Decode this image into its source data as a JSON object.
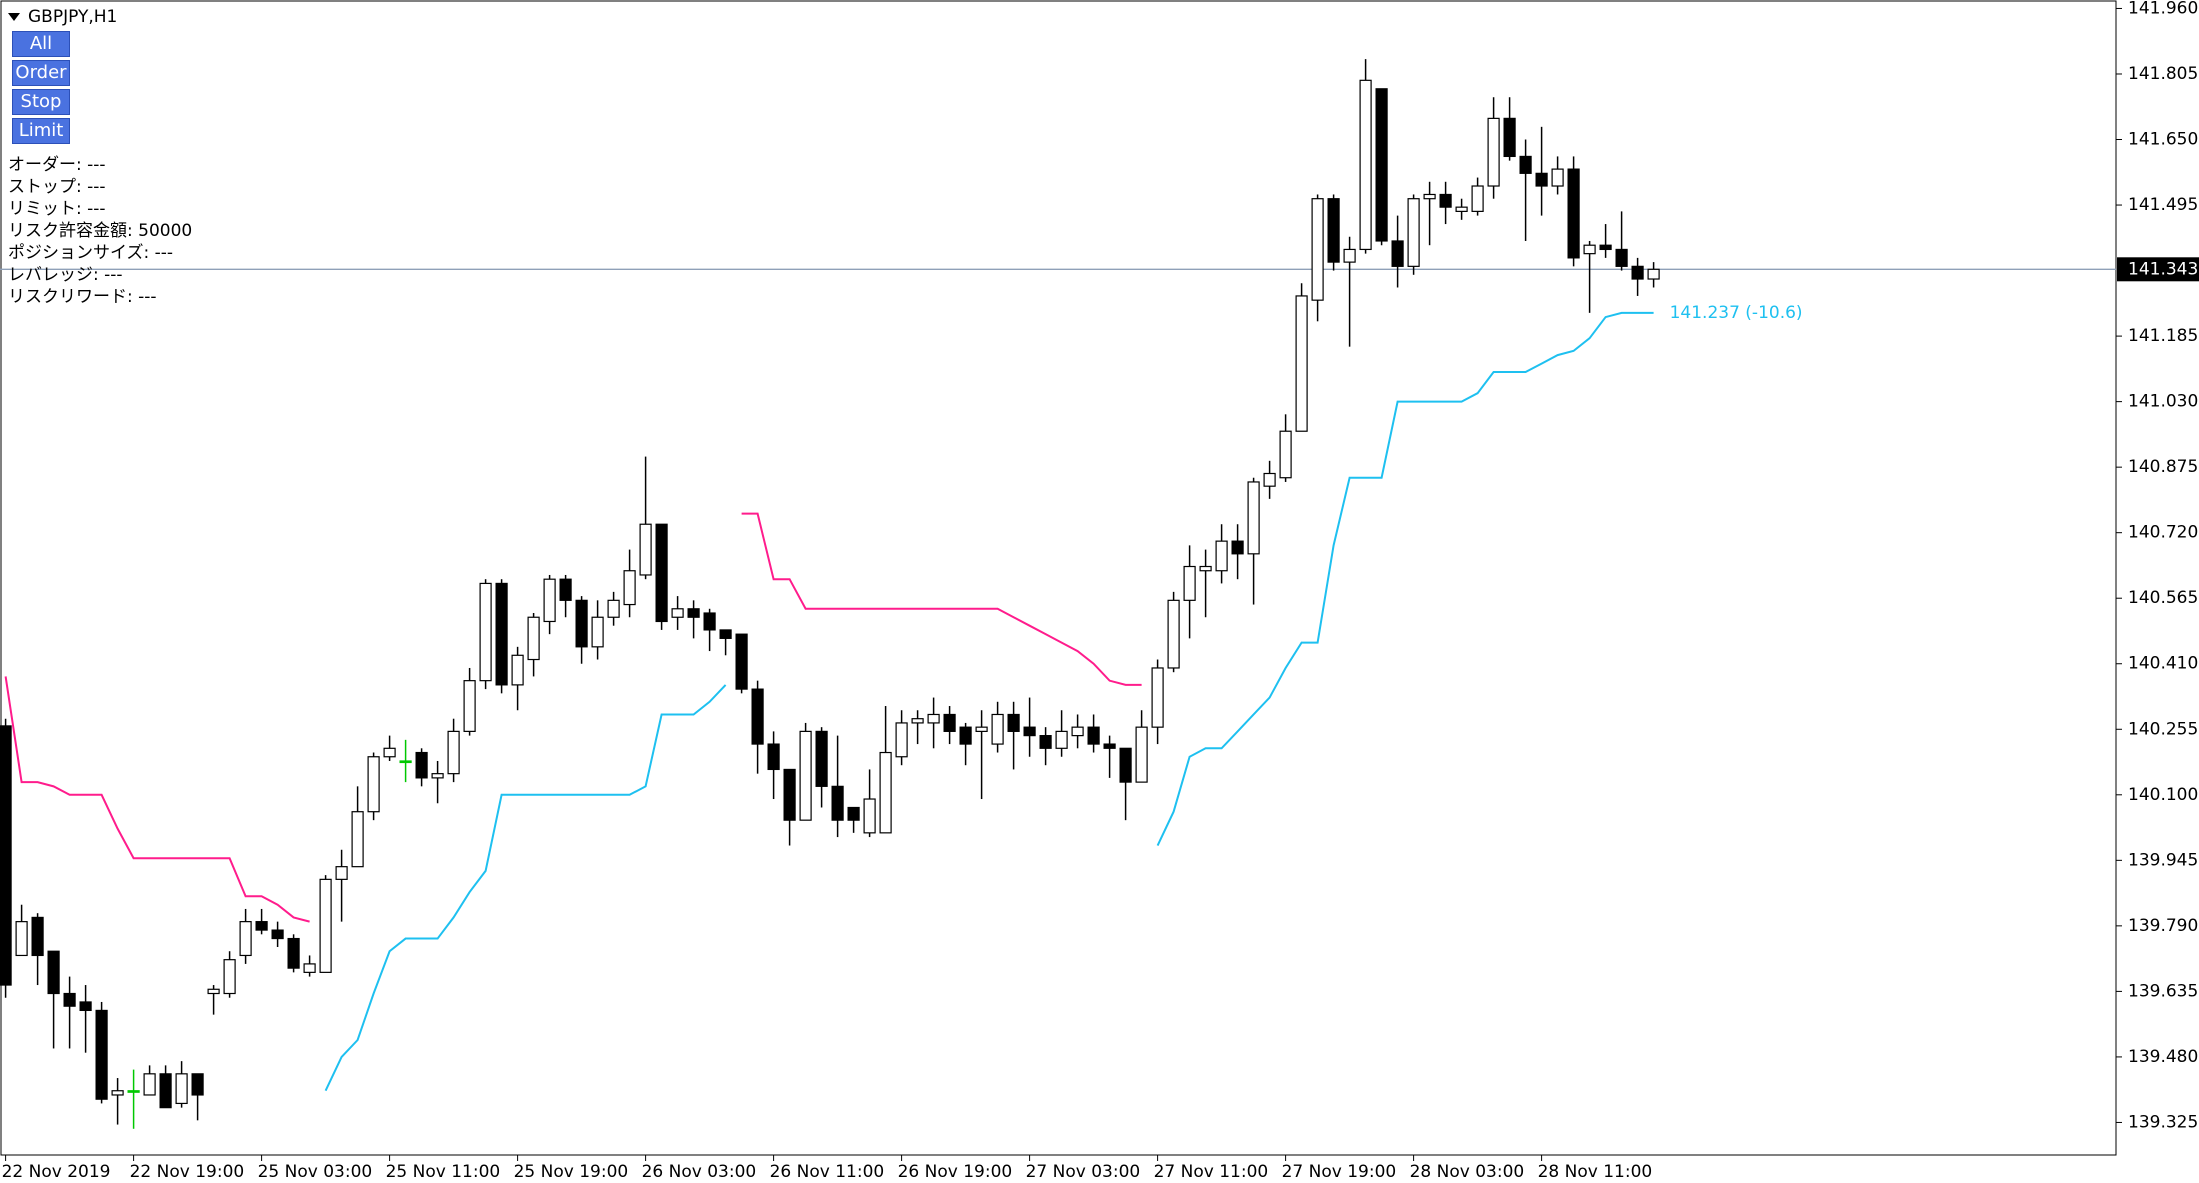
{
  "header": {
    "title": "GBPJPY,H1",
    "buttons": [
      "All",
      "Order",
      "Stop",
      "Limit"
    ],
    "info": [
      "オーダー: ---",
      "ストップ: ---",
      "リミット: ---",
      "リスク許容金額: 50000",
      "ポジションサイズ: ---",
      "レバレッジ: ---",
      "リスクリワード: ---"
    ]
  },
  "chart_data": {
    "type": "candlestick",
    "categories": [
      "22 Nov 2019",
      null,
      null,
      null,
      null,
      null,
      null,
      null,
      "22 Nov 19:00",
      null,
      null,
      null,
      null,
      null,
      null,
      null,
      "25 Nov 03:00",
      null,
      null,
      null,
      null,
      null,
      null,
      null,
      "25 Nov 11:00",
      null,
      null,
      null,
      null,
      null,
      null,
      null,
      "25 Nov 19:00",
      null,
      null,
      null,
      null,
      null,
      null,
      null,
      "26 Nov 03:00",
      null,
      null,
      null,
      null,
      null,
      null,
      null,
      "26 Nov 11:00",
      null,
      null,
      null,
      null,
      null,
      null,
      null,
      "26 Nov 19:00",
      null,
      null,
      null,
      null,
      null,
      null,
      null,
      "27 Nov 03:00",
      null,
      null,
      null,
      null,
      null,
      null,
      null,
      "27 Nov 11:00",
      null,
      null,
      null,
      null,
      null,
      null,
      null,
      "27 Nov 19:00",
      null,
      null,
      null,
      null,
      null,
      null,
      null,
      "28 Nov 03:00",
      null,
      null,
      null,
      null,
      null,
      null,
      null,
      "28 Nov 11:00",
      null,
      null,
      null,
      null,
      null,
      null,
      null
    ],
    "open": [
      140.263,
      139.72,
      139.81,
      139.73,
      139.63,
      139.61,
      139.59,
      139.39,
      139.4,
      139.39,
      139.44,
      139.37,
      139.44,
      139.63,
      139.63,
      139.72,
      139.8,
      139.78,
      139.76,
      139.68,
      139.68,
      139.9,
      139.93,
      140.06,
      140.19,
      140.18,
      140.2,
      140.14,
      140.15,
      140.25,
      140.37,
      140.6,
      140.36,
      140.42,
      140.51,
      140.61,
      140.56,
      140.45,
      140.52,
      140.55,
      140.62,
      140.74,
      140.52,
      140.54,
      140.53,
      140.49,
      140.48,
      140.35,
      140.22,
      140.16,
      140.04,
      140.25,
      140.12,
      140.07,
      140.01,
      140.01,
      140.19,
      140.27,
      140.27,
      140.29,
      140.26,
      140.25,
      140.22,
      140.29,
      140.26,
      140.24,
      140.21,
      140.24,
      140.26,
      140.22,
      140.21,
      140.13,
      140.26,
      140.4,
      140.56,
      140.63,
      140.63,
      140.7,
      140.67,
      140.83,
      140.85,
      140.96,
      141.27,
      141.51,
      141.36,
      141.39,
      141.77,
      141.41,
      141.35,
      141.51,
      141.52,
      141.48,
      141.48,
      141.54,
      141.7,
      141.61,
      141.57,
      141.54,
      141.58,
      141.38,
      141.4,
      141.39,
      141.35,
      141.32
    ],
    "high": [
      140.28,
      139.84,
      139.82,
      139.73,
      139.67,
      139.65,
      139.61,
      139.43,
      139.45,
      139.46,
      139.46,
      139.47,
      139.44,
      139.65,
      139.73,
      139.83,
      139.83,
      139.8,
      139.77,
      139.72,
      139.91,
      139.97,
      140.12,
      140.2,
      140.24,
      140.23,
      140.21,
      140.18,
      140.28,
      140.4,
      140.61,
      140.61,
      140.45,
      140.53,
      140.62,
      140.62,
      140.57,
      140.56,
      140.58,
      140.68,
      140.9,
      140.74,
      140.57,
      140.56,
      140.54,
      140.49,
      140.48,
      140.37,
      140.25,
      140.16,
      140.27,
      140.26,
      140.24,
      140.07,
      140.16,
      140.31,
      140.3,
      140.3,
      140.33,
      140.31,
      140.27,
      140.3,
      140.32,
      140.32,
      140.33,
      140.26,
      140.3,
      140.29,
      140.29,
      140.24,
      140.21,
      140.3,
      140.42,
      140.58,
      140.69,
      140.68,
      140.74,
      140.74,
      140.85,
      140.89,
      141.0,
      141.31,
      141.52,
      141.52,
      141.42,
      141.84,
      141.77,
      141.47,
      141.52,
      141.55,
      141.55,
      141.51,
      141.56,
      141.75,
      141.75,
      141.65,
      141.68,
      141.61,
      141.61,
      141.41,
      141.45,
      141.48,
      141.37,
      141.36
    ],
    "low": [
      139.62,
      139.72,
      139.65,
      139.5,
      139.5,
      139.49,
      139.37,
      139.32,
      139.31,
      139.39,
      139.36,
      139.36,
      139.33,
      139.58,
      139.62,
      139.7,
      139.77,
      139.74,
      139.68,
      139.67,
      139.68,
      139.8,
      139.93,
      140.04,
      140.18,
      140.13,
      140.12,
      140.08,
      140.13,
      140.24,
      140.35,
      140.34,
      140.3,
      140.38,
      140.48,
      140.52,
      140.41,
      140.42,
      140.5,
      140.52,
      140.61,
      140.49,
      140.49,
      140.47,
      140.44,
      140.43,
      140.34,
      140.15,
      140.09,
      139.98,
      140.04,
      140.07,
      140.0,
      140.01,
      140.0,
      140.01,
      140.17,
      140.22,
      140.21,
      140.22,
      140.17,
      140.09,
      140.2,
      140.16,
      140.19,
      140.17,
      140.19,
      140.21,
      140.2,
      140.14,
      140.04,
      140.13,
      140.22,
      140.39,
      140.47,
      140.52,
      140.6,
      140.61,
      140.55,
      140.8,
      140.84,
      140.96,
      141.22,
      141.34,
      141.16,
      141.38,
      141.4,
      141.3,
      141.33,
      141.4,
      141.45,
      141.46,
      141.47,
      141.51,
      141.6,
      141.41,
      141.47,
      141.52,
      141.35,
      141.24,
      141.37,
      141.34,
      141.28,
      141.3
    ],
    "close": [
      139.65,
      139.8,
      139.72,
      139.63,
      139.6,
      139.59,
      139.38,
      139.4,
      139.4,
      139.44,
      139.36,
      139.44,
      139.39,
      139.64,
      139.71,
      139.8,
      139.78,
      139.76,
      139.69,
      139.7,
      139.9,
      139.93,
      140.06,
      140.19,
      140.21,
      140.18,
      140.14,
      140.15,
      140.25,
      140.37,
      140.6,
      140.36,
      140.43,
      140.52,
      140.61,
      140.56,
      140.45,
      140.52,
      140.56,
      140.63,
      140.74,
      140.51,
      140.54,
      140.52,
      140.49,
      140.47,
      140.35,
      140.22,
      140.16,
      140.04,
      140.25,
      140.12,
      140.04,
      140.04,
      140.09,
      140.2,
      140.27,
      140.28,
      140.29,
      140.25,
      140.22,
      140.26,
      140.29,
      140.25,
      140.24,
      140.21,
      140.25,
      140.26,
      140.22,
      140.21,
      140.13,
      140.26,
      140.4,
      140.56,
      140.64,
      140.64,
      140.7,
      140.67,
      140.84,
      140.86,
      140.96,
      141.28,
      141.51,
      141.36,
      141.39,
      141.79,
      141.41,
      141.35,
      141.51,
      141.52,
      141.49,
      141.49,
      141.54,
      141.7,
      141.61,
      141.57,
      141.54,
      141.58,
      141.37,
      141.4,
      141.39,
      141.35,
      141.32,
      141.343
    ],
    "up_color": "#ffffff",
    "down_color": "#000000",
    "doji_color": "#00c800",
    "overlays": [
      {
        "color": "#ff1c8c",
        "values": [
          140.38,
          140.13,
          140.13,
          140.12,
          140.1,
          140.1,
          140.1,
          140.02,
          139.95,
          139.95,
          139.95,
          139.95,
          139.95,
          139.95,
          139.95,
          139.86,
          139.86,
          139.84,
          139.81,
          139.8,
          null,
          null,
          null,
          null,
          null,
          null,
          null,
          null,
          null,
          null,
          null,
          null,
          null,
          null,
          null,
          null,
          null,
          null,
          null,
          null,
          null,
          null,
          null,
          null,
          null,
          null,
          140.765,
          140.765,
          140.61,
          140.61,
          140.54,
          140.54,
          140.54,
          140.54,
          140.54,
          140.54,
          140.54,
          140.54,
          140.54,
          140.54,
          140.54,
          140.54,
          140.54,
          140.52,
          140.5,
          140.48,
          140.46,
          140.44,
          140.41,
          140.37,
          140.36,
          140.36,
          null,
          null,
          null,
          null,
          null,
          null,
          null,
          null,
          null,
          null,
          null,
          null,
          null,
          null,
          null,
          null,
          null,
          null,
          null,
          null,
          null,
          null,
          null,
          null,
          null,
          null,
          null,
          null,
          null,
          null,
          null,
          null
        ]
      },
      {
        "color": "#1ec0f0",
        "values": [
          null,
          null,
          null,
          null,
          null,
          null,
          null,
          null,
          null,
          null,
          null,
          null,
          null,
          null,
          null,
          null,
          null,
          null,
          null,
          null,
          139.4,
          139.48,
          139.52,
          139.63,
          139.73,
          139.76,
          139.76,
          139.76,
          139.81,
          139.87,
          139.92,
          140.1,
          140.1,
          140.1,
          140.1,
          140.1,
          140.1,
          140.1,
          140.1,
          140.1,
          140.12,
          140.29,
          140.29,
          140.29,
          140.32,
          140.36,
          null,
          null,
          null,
          null,
          null,
          null,
          null,
          null,
          null,
          null,
          null,
          null,
          null,
          null,
          null,
          null,
          null,
          null,
          null,
          null,
          null,
          null,
          null,
          null,
          null,
          null,
          139.98,
          140.06,
          140.19,
          140.21,
          140.21,
          140.25,
          140.29,
          140.33,
          140.4,
          140.46,
          140.46,
          140.69,
          140.85,
          140.85,
          140.85,
          141.03,
          141.03,
          141.03,
          141.03,
          141.03,
          141.05,
          141.1,
          141.1,
          141.1,
          141.12,
          141.14,
          141.15,
          141.18,
          141.23,
          141.24,
          141.24,
          141.24
        ],
        "label": "141.237 (-10.6)"
      }
    ],
    "current_price": 141.343,
    "current_line_color": "#8fa0b8",
    "ylim": [
      139.248,
      141.98
    ],
    "yticks": [
      {
        "value": 141.96,
        "label": "141.960"
      },
      141.805,
      {
        "value": 141.65,
        "label": "141.650"
      },
      141.495,
      141.185,
      {
        "value": 141.03,
        "label": "141.030"
      },
      140.875,
      {
        "value": 140.72,
        "label": "140.720"
      },
      140.565,
      {
        "value": 140.41,
        "label": "140.410"
      },
      140.255,
      {
        "value": 140.1,
        "label": "140.100"
      },
      139.945,
      {
        "value": 139.79,
        "label": "139.790"
      },
      139.635,
      {
        "value": 139.48,
        "label": "139.480"
      },
      139.325
    ],
    "grid": false
  }
}
